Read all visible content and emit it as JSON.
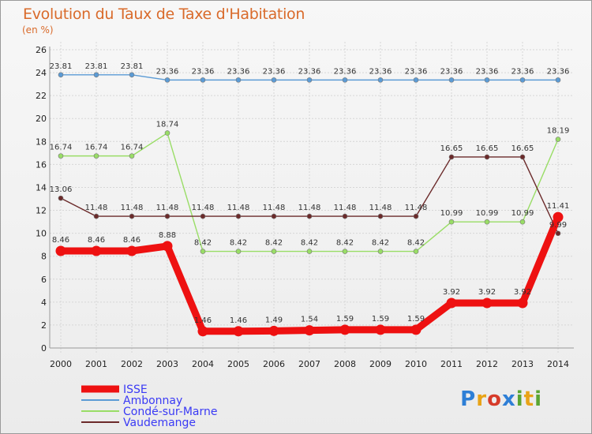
{
  "title": "Evolution du Taux de Taxe d'Habitation",
  "subtitle": "(en %)",
  "logo": {
    "text": "Proxiti",
    "letters": [
      "P",
      "r",
      "o",
      "x",
      "i",
      "t",
      "i"
    ],
    "colors": [
      "#2e7fd6",
      "#e8a317",
      "#d63b2a",
      "#2e7fd6",
      "#5aa532",
      "#e8a317",
      "#5aa532"
    ]
  },
  "chart_data": {
    "type": "line",
    "title": "Evolution du Taux de Taxe d'Habitation",
    "ylabel": "(en %)",
    "xlabel": "",
    "x": [
      "2000",
      "2001",
      "2002",
      "2003",
      "2004",
      "2005",
      "2006",
      "2007",
      "2008",
      "2009",
      "2010",
      "2011",
      "2012",
      "2013",
      "2014"
    ],
    "ylim": [
      0,
      26
    ],
    "yticks": [
      0,
      2,
      4,
      6,
      8,
      10,
      12,
      14,
      16,
      18,
      20,
      22,
      24,
      26
    ],
    "grid": true,
    "legend_position": "bottom-left",
    "series": [
      {
        "name": "ISSE",
        "color": "#ee1111",
        "values": [
          8.46,
          8.46,
          8.46,
          8.88,
          1.46,
          1.46,
          1.49,
          1.54,
          1.59,
          1.59,
          1.59,
          3.92,
          3.92,
          3.92,
          11.41
        ]
      },
      {
        "name": "Ambonnay",
        "color": "#5b9bd5",
        "values": [
          23.81,
          23.81,
          23.81,
          23.36,
          23.36,
          23.36,
          23.36,
          23.36,
          23.36,
          23.36,
          23.36,
          23.36,
          23.36,
          23.36,
          23.36
        ]
      },
      {
        "name": "Condé-sur-Marne",
        "color": "#99dd66",
        "values": [
          16.74,
          16.74,
          16.74,
          18.74,
          8.42,
          8.42,
          8.42,
          8.42,
          8.42,
          8.42,
          8.42,
          10.99,
          10.99,
          10.99,
          18.19
        ]
      },
      {
        "name": "Vaudemange",
        "color": "#6b2a2a",
        "values": [
          13.06,
          11.48,
          11.48,
          11.48,
          11.48,
          11.48,
          11.48,
          11.48,
          11.48,
          11.48,
          11.48,
          16.65,
          16.65,
          16.65,
          9.99
        ]
      }
    ]
  }
}
